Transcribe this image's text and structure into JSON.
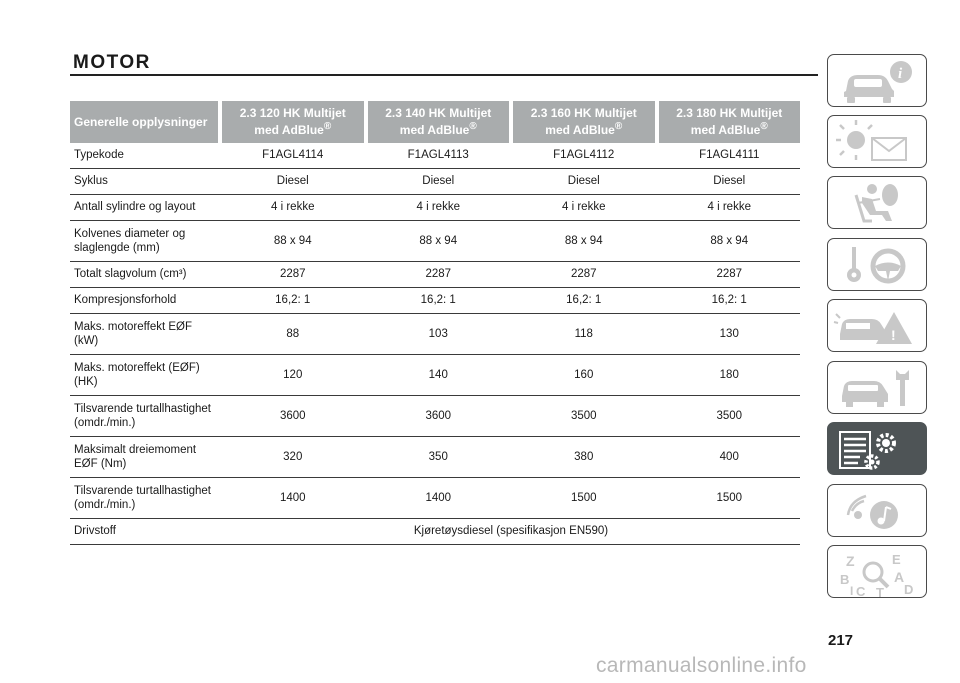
{
  "page": {
    "title": "MOTOR",
    "page_number": "217",
    "watermark": "carmanualsonline.info"
  },
  "table": {
    "headers": [
      "Generelle opplysninger",
      "2.3 120 HK Multijet",
      "2.3 140 HK Multijet",
      "2.3 160 HK Multijet",
      "2.3 180 HK Multijet"
    ],
    "header_sub": "med AdBlue",
    "registered_mark": "®",
    "rows": [
      {
        "label": "Typekode",
        "values": [
          "F1AGL4114",
          "F1AGL4113",
          "F1AGL4112",
          "F1AGL4111"
        ]
      },
      {
        "label": "Syklus",
        "values": [
          "Diesel",
          "Diesel",
          "Diesel",
          "Diesel"
        ]
      },
      {
        "label": "Antall sylindre og layout",
        "values": [
          "4 i rekke",
          "4 i rekke",
          "4 i rekke",
          "4 i rekke"
        ]
      },
      {
        "label": "Kolvenes diameter og",
        "label2": "slaglengde (mm)",
        "values": [
          "88 x 94",
          "88 x 94",
          "88 x 94",
          "88 x 94"
        ]
      },
      {
        "label": "Totalt slagvolum (cm³)",
        "values": [
          "2287",
          "2287",
          "2287",
          "2287"
        ]
      },
      {
        "label": "Kompresjonsforhold",
        "values": [
          "16,2: 1",
          "16,2: 1",
          "16,2: 1",
          "16,2: 1"
        ]
      },
      {
        "label": "Maks. motoreffekt EØF",
        "label2": "(kW)",
        "values": [
          "88",
          "103",
          "118",
          "130"
        ]
      },
      {
        "label": "Maks. motoreffekt (EØF)",
        "label2": "(HK)",
        "values": [
          "120",
          "140",
          "160",
          "180"
        ]
      },
      {
        "label": "Tilsvarende turtallhastighet",
        "label2": "(omdr./min.)",
        "values": [
          "3600",
          "3600",
          "3500",
          "3500"
        ]
      },
      {
        "label": "Maksimalt dreiemoment",
        "label2": "EØF (Nm)",
        "values": [
          "320",
          "350",
          "380",
          "400"
        ]
      },
      {
        "label": "Tilsvarende turtallhastighet",
        "label2": "(omdr./min.)",
        "values": [
          "1400",
          "1400",
          "1500",
          "1500"
        ]
      },
      {
        "label": "Drivstoff",
        "value_span": "Kjøretøysdiesel (spesifikasjon EN590)"
      }
    ]
  },
  "sidebar": {
    "tabs": [
      {
        "icon": "car-info-icon",
        "active": false
      },
      {
        "icon": "dashboard-lights-icon",
        "active": false
      },
      {
        "icon": "seat-airbag-icon",
        "active": false
      },
      {
        "icon": "steering-wheel-key-icon",
        "active": false
      },
      {
        "icon": "car-accident-warning-icon",
        "active": false
      },
      {
        "icon": "car-wrench-icon",
        "active": false
      },
      {
        "icon": "technical-data-gear-icon",
        "active": true
      },
      {
        "icon": "multimedia-icon",
        "active": false
      },
      {
        "icon": "alphabetical-index-icon",
        "active": false
      }
    ],
    "colors": {
      "active_bg": "#4e5456",
      "icon_gray": "#c8c8c8",
      "header_gray": "#a9acad"
    },
    "index_letters": [
      "Z",
      "E",
      "B",
      "A",
      "C",
      "T",
      "D",
      "I"
    ]
  }
}
